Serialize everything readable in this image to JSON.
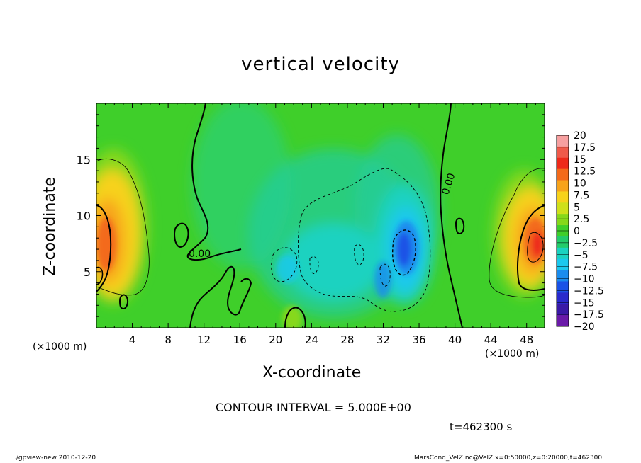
{
  "chart_data": {
    "type": "heatmap",
    "title": "vertical velocity",
    "xlabel": "X-coordinate",
    "ylabel": "Z-coordinate",
    "x_unit_left": "(×1000 m)",
    "x_unit_right": "(×1000 m)",
    "xlim": [
      0,
      50
    ],
    "ylim": [
      0,
      20
    ],
    "x_ticks": [
      "4",
      "8",
      "12",
      "16",
      "20",
      "24",
      "28",
      "32",
      "36",
      "40",
      "44",
      "48"
    ],
    "y_ticks": [
      "5",
      "10",
      "15"
    ],
    "colorbar": {
      "labels": [
        "20",
        "17.5",
        "15",
        "12.5",
        "10",
        "7.5",
        "5",
        "2.5",
        "0",
        "−2.5",
        "−5",
        "−7.5",
        "−10",
        "−12.5",
        "−15",
        "−17.5",
        "−20"
      ],
      "levels": [
        20,
        17.5,
        15,
        12.5,
        10,
        7.5,
        5,
        2.5,
        0,
        -2.5,
        -5,
        -7.5,
        -10,
        -12.5,
        -15,
        -17.5,
        -20
      ],
      "colors": [
        "#f7a0a0",
        "#f05a4a",
        "#ee2a1a",
        "#f36a1a",
        "#f7a31a",
        "#f7d21a",
        "#cfe01a",
        "#86d81a",
        "#3fcf2a",
        "#23cc6a",
        "#1ad2c0",
        "#1ac8ee",
        "#1a8cee",
        "#1a52e6",
        "#2a2acc",
        "#3a1aa6",
        "#6a1aa8"
      ]
    },
    "field_features": [
      {
        "kind": "updraft",
        "x": 1.3,
        "z": 7.5,
        "peak": 12
      },
      {
        "kind": "updraft",
        "x": 49.0,
        "z": 7.5,
        "peak": 13
      },
      {
        "kind": "downdraft",
        "x": 34.0,
        "z": 7.0,
        "peak": -12
      },
      {
        "kind": "downdraft",
        "x": 26.0,
        "z": 6.0,
        "peak": -6
      }
    ],
    "contour_labels": [
      "0.00",
      "0.00"
    ],
    "contour_interval": "CONTOUR INTERVAL = 5.000E+00",
    "time": "t=462300 s"
  },
  "footer": {
    "left": "./gpview-new  2010-12-20",
    "right": "MarsCond_VelZ.nc@VelZ,x=0:50000,z=0:20000,t=462300"
  }
}
